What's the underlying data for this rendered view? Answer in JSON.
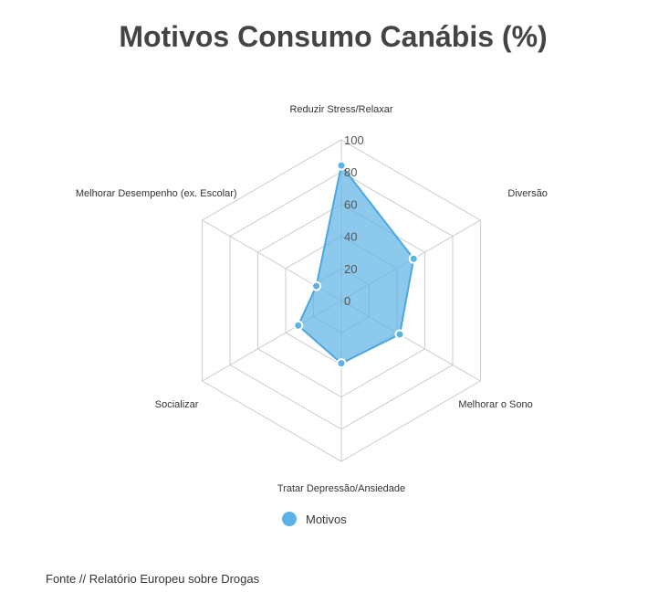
{
  "title": "Motivos Consumo Canábis (%)",
  "legend": {
    "label": "Motivos"
  },
  "source": "Fonte // Relatório Europeu sobre Drogas",
  "colors": {
    "series_fill": "#5BB2E6",
    "series_stroke": "#4AA8E0",
    "grid": "#cccccc"
  },
  "chart_data": {
    "type": "radar",
    "categories": [
      "Reduzir Stress/Relaxar",
      "Diversão",
      "Melhorar o Sono",
      "Tratar Depressão/Ansiedade",
      "Socializar",
      "Melhorar Desempenho (ex. Escolar)"
    ],
    "series": [
      {
        "name": "Motivos",
        "values": [
          84,
          52,
          42,
          39,
          31,
          18
        ]
      }
    ],
    "ticks": [
      0,
      20,
      40,
      60,
      80,
      100
    ],
    "range": [
      0,
      100
    ],
    "legend_position": "bottom"
  }
}
